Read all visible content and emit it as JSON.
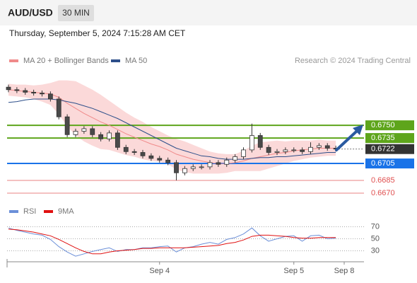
{
  "header": {
    "symbol": "AUD/USD",
    "interval": "30 MIN",
    "timestamp": "Thursday, September 5, 2024 7:15:28 AM CET",
    "copyright": "Research © 2024 Trading Central"
  },
  "chart_data": [
    {
      "type": "candlestick",
      "categories": [
        null,
        null,
        null,
        null,
        null,
        null,
        null,
        null,
        null,
        null,
        null,
        null,
        null,
        null,
        null,
        null,
        null,
        null,
        "Sep 4",
        null,
        null,
        null,
        null,
        null,
        null,
        null,
        null,
        null,
        null,
        null,
        null,
        null,
        null,
        null,
        "Sep 5",
        null,
        null,
        null,
        null,
        null,
        "Sep 8"
      ],
      "open": [
        0.6795,
        0.6792,
        0.6791,
        0.6789,
        0.6788,
        0.6787,
        0.6781,
        0.676,
        0.6739,
        0.6743,
        0.6746,
        0.6739,
        0.6734,
        0.6741,
        0.6724,
        0.6719,
        0.6718,
        0.6714,
        0.6711,
        0.6709,
        0.6706,
        0.6694,
        0.6699,
        0.6701,
        0.6701,
        0.6706,
        0.6704,
        0.6709,
        0.6713,
        0.6721,
        0.6738,
        0.6724,
        0.6718,
        0.6719,
        0.6721,
        0.6721,
        0.6719,
        0.6724,
        0.6726,
        0.6723,
        null
      ],
      "high": [
        0.6798,
        0.6795,
        0.6794,
        0.6792,
        0.6791,
        0.679,
        0.6784,
        0.6763,
        0.6746,
        0.6749,
        0.6749,
        0.6742,
        0.6744,
        0.6744,
        0.6727,
        0.6722,
        0.6721,
        0.6717,
        0.6714,
        0.6712,
        0.6709,
        0.6702,
        0.6704,
        0.6704,
        0.6709,
        0.6709,
        0.6712,
        0.6716,
        0.6724,
        0.6752,
        0.6741,
        0.6727,
        0.6722,
        0.6724,
        0.6724,
        0.6724,
        0.673,
        0.6729,
        0.6729,
        0.6726,
        null
      ],
      "low": [
        0.6789,
        0.6788,
        0.6786,
        0.6785,
        0.6784,
        0.6778,
        0.6757,
        0.6736,
        0.6736,
        0.674,
        0.6736,
        0.6731,
        0.6731,
        0.6721,
        0.6716,
        0.6715,
        0.6711,
        0.6708,
        0.6706,
        0.6703,
        0.6685,
        0.6691,
        0.6696,
        0.6698,
        0.6698,
        0.6701,
        0.6701,
        0.6706,
        0.671,
        0.6718,
        0.6721,
        0.6715,
        0.6715,
        0.6716,
        0.6718,
        0.6716,
        0.6716,
        0.6721,
        0.672,
        0.6719,
        null
      ],
      "close": [
        0.6792,
        0.6791,
        0.6789,
        0.6788,
        0.6787,
        0.6781,
        0.676,
        0.6739,
        0.6743,
        0.6746,
        0.6739,
        0.6734,
        0.6741,
        0.6724,
        0.6719,
        0.6718,
        0.6714,
        0.6711,
        0.6709,
        0.6706,
        0.6694,
        0.6699,
        0.6701,
        0.6701,
        0.6706,
        0.6704,
        0.6709,
        0.6713,
        0.6721,
        0.6738,
        0.6724,
        0.6718,
        0.6719,
        0.6721,
        0.6721,
        0.6719,
        0.6724,
        0.6726,
        0.6723,
        0.6722,
        null
      ],
      "up_color": "#ffffff",
      "down_color": "#4a4a4a",
      "series": [
        {
          "name": "MA 20 + Bollinger Bands",
          "color": "#f08a8a",
          "band_color": "#fbd9d9",
          "values": [
            0.6792,
            0.6791,
            0.679,
            0.6789,
            0.6788,
            0.6787,
            0.6783,
            0.6776,
            0.677,
            0.6764,
            0.6759,
            0.6754,
            0.675,
            0.6745,
            0.674,
            0.6736,
            0.6732,
            0.6728,
            0.6725,
            0.6721,
            0.6716,
            0.6713,
            0.671,
            0.6708,
            0.6706,
            0.6705,
            0.6705,
            0.6706,
            0.6708,
            0.6711,
            0.6713,
            0.6715,
            0.6717,
            0.6718,
            0.672,
            0.6721,
            0.6722,
            0.6723,
            0.6723,
            0.6723,
            null
          ],
          "upper": [
            0.6799,
            0.6798,
            0.6798,
            0.6797,
            0.6798,
            0.68,
            0.6803,
            0.6803,
            0.6802,
            0.6797,
            0.6792,
            0.6786,
            0.6779,
            0.6772,
            0.6765,
            0.6759,
            0.6754,
            0.6748,
            0.6743,
            0.6738,
            0.6734,
            0.6731,
            0.6727,
            0.6723,
            0.6719,
            0.6717,
            0.6716,
            0.6716,
            0.672,
            0.6726,
            0.673,
            0.6731,
            0.6732,
            0.6731,
            0.6732,
            0.6732,
            0.6732,
            0.6733,
            0.6732,
            0.6732,
            null
          ],
          "lower": [
            0.6785,
            0.6784,
            0.6783,
            0.6781,
            0.6778,
            0.6774,
            0.6763,
            0.6749,
            0.6738,
            0.6731,
            0.6726,
            0.6722,
            0.6721,
            0.6718,
            0.6715,
            0.6713,
            0.671,
            0.6708,
            0.6707,
            0.6704,
            0.6698,
            0.6695,
            0.6693,
            0.6693,
            0.6693,
            0.6693,
            0.6694,
            0.6696,
            0.6696,
            0.6696,
            0.6696,
            0.6699,
            0.6702,
            0.6705,
            0.6708,
            0.671,
            0.6712,
            0.6713,
            0.6714,
            0.6714,
            null
          ]
        },
        {
          "name": "MA 50",
          "color": "#2d4f8a",
          "values": [
            0.6777,
            0.6778,
            0.678,
            0.6781,
            0.6781,
            0.6781,
            0.678,
            0.6778,
            0.6776,
            0.6773,
            0.677,
            0.6766,
            0.6762,
            0.6758,
            0.6753,
            0.6748,
            0.6743,
            0.6738,
            0.6733,
            0.6728,
            0.6723,
            0.672,
            0.6717,
            0.6714,
            0.6713,
            0.6711,
            0.671,
            0.671,
            0.671,
            0.6711,
            0.6712,
            0.6712,
            0.6713,
            0.6713,
            0.6714,
            0.6715,
            0.6716,
            0.6717,
            0.6718,
            0.6718,
            null
          ]
        }
      ],
      "levels": [
        {
          "value": 0.675,
          "label": "0.6750",
          "color": "#5ea51b",
          "boxed": true,
          "line": "solid"
        },
        {
          "value": 0.6735,
          "label": "0.6735",
          "color": "#5ea51b",
          "boxed": true,
          "line": "solid"
        },
        {
          "value": 0.6722,
          "label": "0.6722",
          "color": "#333333",
          "boxed": true,
          "line": "dotted"
        },
        {
          "value": 0.6705,
          "label": "0.6705",
          "color": "#1a73e8",
          "boxed": true,
          "line": "solid"
        },
        {
          "value": 0.6685,
          "label": "0.6685",
          "color": "#e05050",
          "boxed": false,
          "line": "solid"
        },
        {
          "value": 0.667,
          "label": "0.6670",
          "color": "#e05050",
          "boxed": false,
          "line": "solid"
        }
      ],
      "ylim": [
        0.666,
        0.6806
      ]
    },
    {
      "type": "line",
      "series": [
        {
          "name": "RSI",
          "color": "#6b8fd8",
          "values": [
            68,
            64,
            61,
            58,
            56,
            49,
            37,
            28,
            21,
            25,
            29,
            32,
            35,
            29,
            32,
            32,
            35,
            35,
            37,
            38,
            28,
            35,
            37,
            41,
            44,
            41,
            49,
            52,
            58,
            68,
            55,
            46,
            50,
            54,
            55,
            46,
            55,
            56,
            50,
            51,
            null
          ]
        },
        {
          "name": "9MA",
          "color": "#e01010",
          "values": [
            66,
            65,
            63,
            61,
            58,
            55,
            49,
            42,
            35,
            29,
            25,
            25,
            28,
            30,
            31,
            32,
            34,
            34,
            35,
            35,
            35,
            35,
            36,
            37,
            38,
            39,
            42,
            44,
            48,
            54,
            56,
            56,
            55,
            54,
            52,
            51,
            51,
            52,
            52,
            52,
            null
          ]
        }
      ],
      "ylim": [
        15,
        80
      ],
      "yticks": [
        30,
        50,
        70
      ]
    }
  ]
}
